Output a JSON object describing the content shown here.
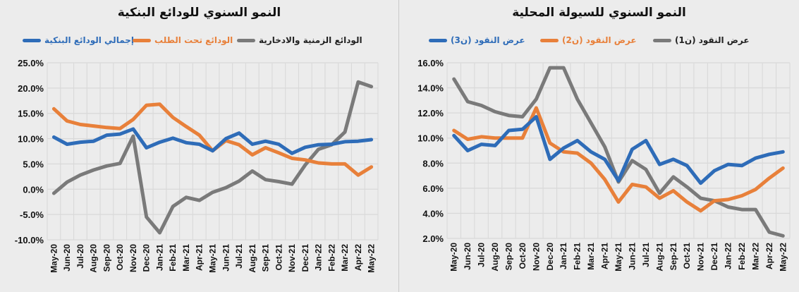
{
  "colors": {
    "blue": "#2e6cb8",
    "orange": "#e8803a",
    "gray": "#7a7a7a",
    "grid": "#d9d9d9"
  },
  "chart_data": [
    {
      "type": "line",
      "title": "النمو السنوي للودائع البنكية",
      "x": [
        "May-20",
        "Jun-20",
        "Jul-20",
        "Aug-20",
        "Sep-20",
        "Oct-20",
        "Nov-20",
        "Dec-20",
        "Jan-21",
        "Feb-21",
        "Mar-21",
        "Apr-21",
        "May-21",
        "Jun-21",
        "Jul-21",
        "Aug-21",
        "Sep-21",
        "Oct-21",
        "Nov-21",
        "Dec-21",
        "Jan-22",
        "Feb-22",
        "Mar-22",
        "Apr-22",
        "May-22"
      ],
      "yticks": [
        "25.0%",
        "20.0%",
        "15.0%",
        "10.0%",
        "5.0%",
        "0.0%",
        "-5.0%",
        "-10.0%"
      ],
      "ylim": [
        -10,
        25
      ],
      "grid": true,
      "legend_position": "top",
      "series": [
        {
          "name": "إجمالي الودائع البنكية",
          "color": "#2e6cb8",
          "values": [
            10.3,
            8.9,
            9.3,
            9.5,
            10.7,
            10.9,
            11.9,
            8.2,
            9.3,
            10.1,
            9.2,
            8.9,
            7.6,
            10.0,
            11.1,
            8.9,
            9.5,
            8.9,
            7.1,
            8.3,
            8.8,
            8.9,
            9.4,
            9.5,
            9.8
          ]
        },
        {
          "name": "الودائع تحت الطلب",
          "color": "#e8803a",
          "values": [
            15.9,
            13.5,
            12.8,
            12.5,
            12.2,
            12.0,
            13.8,
            16.6,
            16.8,
            14.2,
            12.4,
            10.7,
            7.6,
            9.6,
            8.8,
            6.8,
            8.2,
            7.2,
            6.1,
            5.8,
            5.2,
            5.0,
            5.0,
            2.8,
            4.4
          ]
        },
        {
          "name": "الودائع الزمنية والادخارية",
          "color": "#7a7a7a",
          "values": [
            -0.8,
            1.4,
            2.8,
            3.8,
            4.6,
            5.1,
            10.5,
            -5.5,
            -8.6,
            -3.4,
            -1.6,
            -2.2,
            -0.6,
            0.3,
            1.6,
            3.6,
            1.9,
            1.5,
            1.0,
            4.8,
            7.9,
            8.8,
            11.3,
            21.2,
            20.3
          ]
        }
      ]
    },
    {
      "type": "line",
      "title": "النمو السنوي للسيولة المحلية",
      "x": [
        "May-20",
        "Jun-20",
        "Jul-20",
        "Aug-20",
        "Sep-20",
        "Oct-20",
        "Nov-20",
        "Dec-20",
        "Jan-21",
        "Feb-21",
        "Mar-21",
        "Apr-21",
        "May-21",
        "Jun-21",
        "Jul-21",
        "Aug-21",
        "Sep-21",
        "Oct-21",
        "Nov-21",
        "Dec-21",
        "Jan-22",
        "Feb-22",
        "Mar-22",
        "Apr-22",
        "May-22"
      ],
      "yticks": [
        "16.0%",
        "14.0%",
        "12.0%",
        "10.0%",
        "8.0%",
        "6.0%",
        "4.0%",
        "2.0%"
      ],
      "ylim": [
        2,
        16
      ],
      "grid": true,
      "legend_position": "top",
      "series": [
        {
          "name": "عرض النقود (ن3)",
          "color": "#2e6cb8",
          "values": [
            10.2,
            9.0,
            9.5,
            9.4,
            10.6,
            10.7,
            11.7,
            8.3,
            9.2,
            9.8,
            8.9,
            8.3,
            6.6,
            9.1,
            9.8,
            7.9,
            8.3,
            7.8,
            6.4,
            7.4,
            7.9,
            7.8,
            8.4,
            8.7,
            8.9
          ]
        },
        {
          "name": "عرض النقود (ن2)",
          "color": "#e8803a",
          "values": [
            10.6,
            9.9,
            10.1,
            10.0,
            10.0,
            10.0,
            12.4,
            9.6,
            8.9,
            8.8,
            8.0,
            6.7,
            4.9,
            6.3,
            6.1,
            5.2,
            5.8,
            4.9,
            4.2,
            5.0,
            5.1,
            5.4,
            5.9,
            6.8,
            7.6
          ]
        },
        {
          "name": "عرض النقود (ن1)",
          "color": "#7a7a7a",
          "values": [
            14.7,
            12.9,
            12.6,
            12.1,
            11.8,
            11.7,
            13.1,
            15.6,
            15.6,
            13.1,
            11.2,
            9.3,
            6.5,
            8.2,
            7.5,
            5.6,
            6.9,
            6.1,
            5.2,
            5.0,
            4.5,
            4.3,
            4.3,
            2.5,
            2.2
          ]
        }
      ]
    }
  ]
}
